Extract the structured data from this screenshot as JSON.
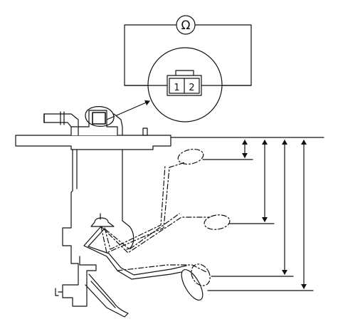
{
  "connector": {
    "pin_1": "1",
    "pin_2": "2"
  },
  "meter": {
    "symbol": "Ω",
    "icon": "ohmmeter-icon"
  },
  "colors": {
    "line": "#111111",
    "background": "#ffffff"
  }
}
